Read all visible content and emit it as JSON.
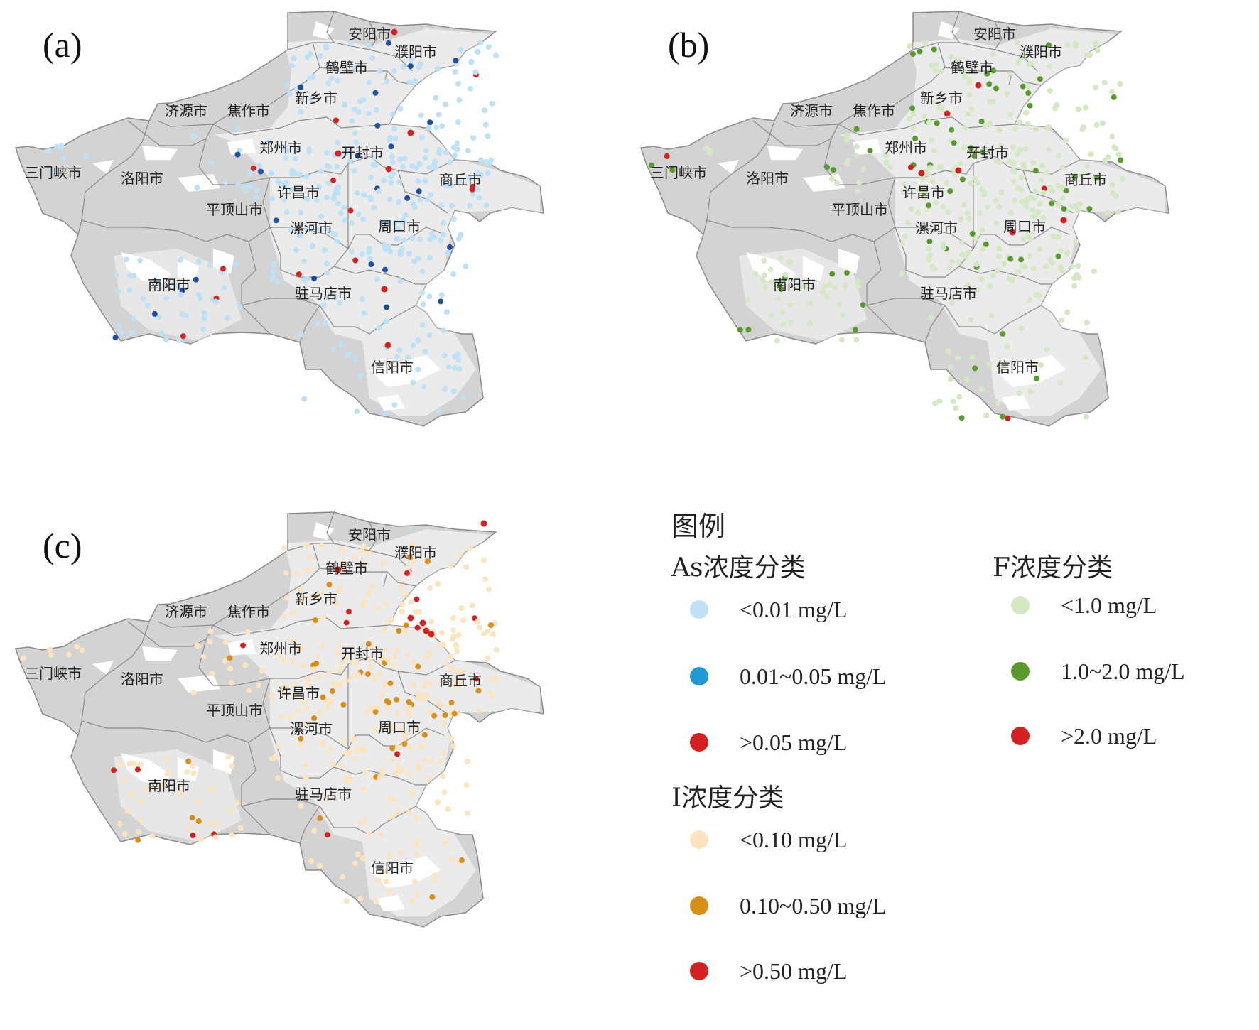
{
  "panels": {
    "a": {
      "label": "(a)"
    },
    "b": {
      "label": "(b)"
    },
    "c": {
      "label": "(c)"
    }
  },
  "cities": [
    {
      "id": "anyang",
      "name": "安阳市"
    },
    {
      "id": "puyang",
      "name": "濮阳市"
    },
    {
      "id": "hebi",
      "name": "鹤壁市"
    },
    {
      "id": "xinxiang",
      "name": "新乡市"
    },
    {
      "id": "jiyuan",
      "name": "济源市"
    },
    {
      "id": "jiaozuo",
      "name": "焦作市"
    },
    {
      "id": "zhengzhou",
      "name": "郑州市"
    },
    {
      "id": "kaifeng",
      "name": "开封市"
    },
    {
      "id": "sanmenxia",
      "name": "三门峡市"
    },
    {
      "id": "luoyang",
      "name": "洛阳市"
    },
    {
      "id": "shangqiu",
      "name": "商丘市"
    },
    {
      "id": "xuchang",
      "name": "许昌市"
    },
    {
      "id": "pingdingshan",
      "name": "平顶山市"
    },
    {
      "id": "luohe",
      "name": "漯河市"
    },
    {
      "id": "zhoukou",
      "name": "周口市"
    },
    {
      "id": "nanyang",
      "name": "南阳市"
    },
    {
      "id": "zhumadian",
      "name": "驻马店市"
    },
    {
      "id": "xinyang",
      "name": "信阳市"
    }
  ],
  "legend": {
    "title": "图例",
    "groups": [
      {
        "id": "as",
        "title": "As浓度分类",
        "items": [
          {
            "label": "<0.01 mg/L",
            "color": "#bfe1f6"
          },
          {
            "label": "0.01~0.05 mg/L",
            "color": "#1f9ad6"
          },
          {
            "label": ">0.05 mg/L",
            "color": "#d42020"
          }
        ]
      },
      {
        "id": "f",
        "title": "F浓度分类",
        "items": [
          {
            "label": "<1.0 mg/L",
            "color": "#d4e8c3"
          },
          {
            "label": "1.0~2.0 mg/L",
            "color": "#5a9a2c"
          },
          {
            "label": ">2.0 mg/L",
            "color": "#d42020"
          }
        ]
      },
      {
        "id": "i",
        "title": "I浓度分类",
        "items": [
          {
            "label": "<0.10 mg/L",
            "color": "#fbe4c0"
          },
          {
            "label": "0.10~0.50 mg/L",
            "color": "#d88f1a"
          },
          {
            "label": ">0.50 mg/L",
            "color": "#d42020"
          }
        ]
      }
    ]
  },
  "colors": {
    "land": "#d3d3d3",
    "boundary": "#8a8a8a",
    "as_dark": "#1f4fa0"
  }
}
